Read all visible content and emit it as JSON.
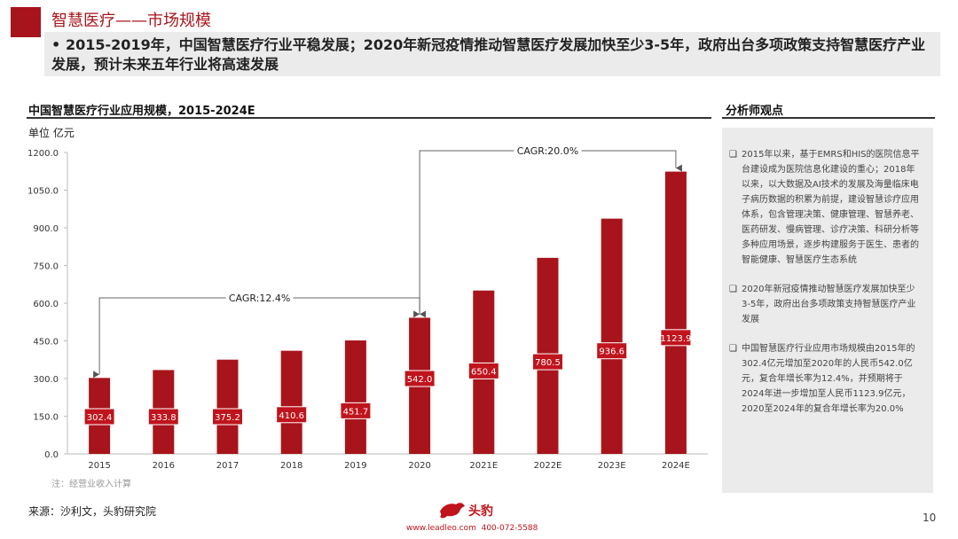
{
  "header": {
    "title": "智慧医疗——市场规模",
    "summary_bullet": "•",
    "summary": "2015-2019年，中国智慧医疗行业平稳发展；2020年新冠疫情推动智慧医疗发展加快至少3-5年，政府出台多项政策支持智慧医疗产业发展，预计未来五年行业将高速发展"
  },
  "chart_data": {
    "type": "bar",
    "title": "中国智慧医疗行业应用规模，2015-2024E",
    "unit": "单位    亿元",
    "categories": [
      "2015",
      "2016",
      "2017",
      "2018",
      "2019",
      "2020",
      "2021E",
      "2022E",
      "2023E",
      "2024E"
    ],
    "values": [
      302.4,
      333.8,
      375.2,
      410.6,
      451.7,
      542.0,
      650.4,
      780.5,
      936.6,
      1123.9
    ],
    "ylim": [
      0,
      1200
    ],
    "yticks": [
      "0.0",
      "150.0",
      "300.0",
      "450.0",
      "600.0",
      "750.0",
      "900.0",
      "1050.0",
      "1200.0"
    ],
    "bar_color": "#a8141c",
    "label_color": "#c0141c",
    "annotations": [
      {
        "text": "CAGR:12.4%",
        "from": "2015",
        "to": "2020"
      },
      {
        "text": "CAGR:20.0%",
        "from": "2020",
        "to": "2024E"
      }
    ]
  },
  "note": "注：经营业收入计算",
  "source": "来源：沙利文，头豹研究院",
  "footer": {
    "logo_text": "头豹",
    "site": "www.leadleo.com",
    "phone": "400-072-5588",
    "page_number": "10"
  },
  "analyst": {
    "title": "分析师观点",
    "bullet": "❑",
    "items": [
      "2015年以来，基于EMRS和HIS的医院信息平台建设成为医院信息化建设的重心；2018年以来，以大数据及AI技术的发展及海量临床电子病历数据的积累为前提，建设智慧诊疗应用体系，包含管理决策、健康管理、智慧养老、医药研发、慢病管理、诊疗决策、科研分析等多种应用场景，逐步构建服务于医生、患者的智能健康、智慧医疗生态系统",
      "2020年新冠疫情推动智慧医疗发展加快至少3-5年，政府出台多项政策支持智慧医疗产业发展",
      "中国智慧医疗行业应用市场规模由2015年的302.4亿元增加至2020年的人民币542.0亿元，复合年增长率为12.4%，并预期将于2024年进一步增加至人民币1123.9亿元，2020至2024年的复合年增长率为20.0%"
    ]
  }
}
